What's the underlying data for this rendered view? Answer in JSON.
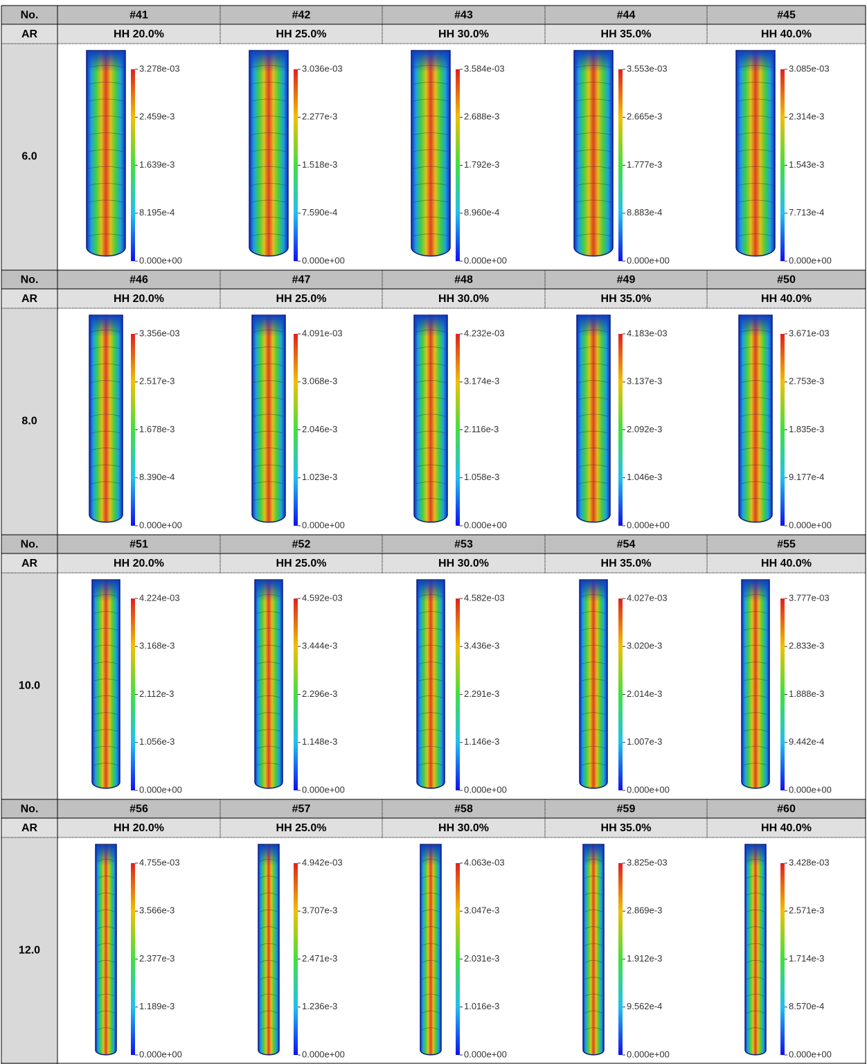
{
  "table": {
    "blocks": [
      {
        "no_label": "No.",
        "ar_label": "AR",
        "ar": "6.0",
        "cases": [
          {
            "id": "#41",
            "hh": "HH 20.0%",
            "ticks": [
              "3.278e-03",
              "2.459e-3",
              "1.639e-3",
              "8.195e-4",
              "0.000e+00"
            ]
          },
          {
            "id": "#42",
            "hh": "HH 25.0%",
            "ticks": [
              "3.036e-03",
              "2.277e-3",
              "1.518e-3",
              "7.590e-4",
              "0.000e+00"
            ]
          },
          {
            "id": "#43",
            "hh": "HH 30.0%",
            "ticks": [
              "3.584e-03",
              "2.688e-3",
              "1.792e-3",
              "8.960e-4",
              "0.000e+00"
            ]
          },
          {
            "id": "#44",
            "hh": "HH 35.0%",
            "ticks": [
              "3.553e-03",
              "2.665e-3",
              "1.777e-3",
              "8.883e-4",
              "0.000e+00"
            ]
          },
          {
            "id": "#45",
            "hh": "HH 40.0%",
            "ticks": [
              "3.085e-03",
              "2.314e-3",
              "1.543e-3",
              "7.713e-4",
              "0.000e+00"
            ]
          }
        ]
      },
      {
        "no_label": "No.",
        "ar_label": "AR",
        "ar": "8.0",
        "cases": [
          {
            "id": "#46",
            "hh": "HH 20.0%",
            "ticks": [
              "3.356e-03",
              "2.517e-3",
              "1.678e-3",
              "8.390e-4",
              "0.000e+00"
            ]
          },
          {
            "id": "#47",
            "hh": "HH 25.0%",
            "ticks": [
              "4.091e-03",
              "3.068e-3",
              "2.046e-3",
              "1.023e-3",
              "0.000e+00"
            ]
          },
          {
            "id": "#48",
            "hh": "HH 30.0%",
            "ticks": [
              "4.232e-03",
              "3.174e-3",
              "2.116e-3",
              "1.058e-3",
              "0.000e+00"
            ]
          },
          {
            "id": "#49",
            "hh": "HH 35.0%",
            "ticks": [
              "4.183e-03",
              "3.137e-3",
              "2.092e-3",
              "1.046e-3",
              "0.000e+00"
            ]
          },
          {
            "id": "#50",
            "hh": "HH 40.0%",
            "ticks": [
              "3.671e-03",
              "2.753e-3",
              "1.835e-3",
              "9.177e-4",
              "0.000e+00"
            ]
          }
        ]
      },
      {
        "no_label": "No.",
        "ar_label": "AR",
        "ar": "10.0",
        "cases": [
          {
            "id": "#51",
            "hh": "HH 20.0%",
            "ticks": [
              "4.224e-03",
              "3.168e-3",
              "2.112e-3",
              "1.056e-3",
              "0.000e+00"
            ]
          },
          {
            "id": "#52",
            "hh": "HH 25.0%",
            "ticks": [
              "4.592e-03",
              "3.444e-3",
              "2.296e-3",
              "1.148e-3",
              "0.000e+00"
            ]
          },
          {
            "id": "#53",
            "hh": "HH 30.0%",
            "ticks": [
              "4.582e-03",
              "3.436e-3",
              "2.291e-3",
              "1.146e-3",
              "0.000e+00"
            ]
          },
          {
            "id": "#54",
            "hh": "HH 35.0%",
            "ticks": [
              "4.027e-03",
              "3.020e-3",
              "2.014e-3",
              "1.007e-3",
              "0.000e+00"
            ]
          },
          {
            "id": "#55",
            "hh": "HH 40.0%",
            "ticks": [
              "3.777e-03",
              "2.833e-3",
              "1.888e-3",
              "9.442e-4",
              "0.000e+00"
            ]
          }
        ]
      },
      {
        "no_label": "No.",
        "ar_label": "AR",
        "ar": "12.0",
        "cases": [
          {
            "id": "#56",
            "hh": "HH 20.0%",
            "ticks": [
              "4.755e-03",
              "3.566e-3",
              "2.377e-3",
              "1.189e-3",
              "0.000e+00"
            ]
          },
          {
            "id": "#57",
            "hh": "HH 25.0%",
            "ticks": [
              "4.942e-03",
              "3.707e-3",
              "2.471e-3",
              "1.236e-3",
              "0.000e+00"
            ]
          },
          {
            "id": "#58",
            "hh": "HH 30.0%",
            "ticks": [
              "4.063e-03",
              "3.047e-3",
              "2.031e-3",
              "1.016e-3",
              "0.000e+00"
            ]
          },
          {
            "id": "#59",
            "hh": "HH 35.0%",
            "ticks": [
              "3.825e-03",
              "2.869e-3",
              "1.912e-3",
              "9.562e-4",
              "0.000e+00"
            ]
          },
          {
            "id": "#60",
            "hh": "HH 40.0%",
            "ticks": [
              "3.428e-03",
              "2.571e-3",
              "1.714e-3",
              "8.570e-4",
              "0.000e+00"
            ]
          }
        ]
      }
    ]
  }
}
